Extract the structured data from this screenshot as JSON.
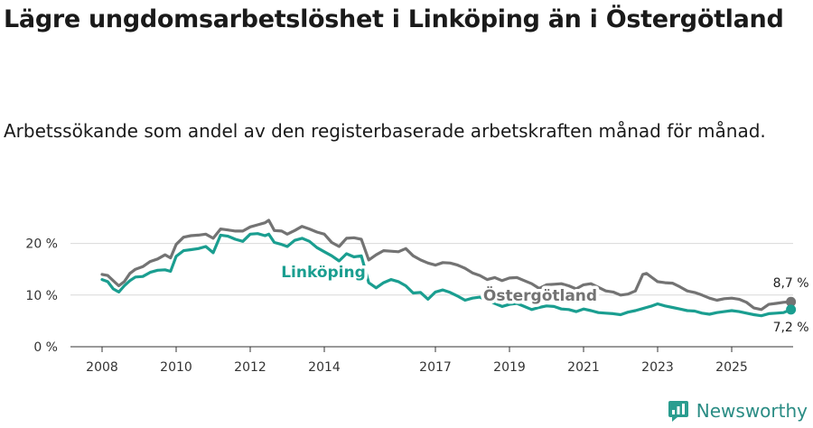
{
  "title": "Lägre ungdomsarbetslöshet i Linköping än i Östergötland",
  "subtitle": "Arbetssökande som andel av den registerbaserade arbetskraften månad för månad.",
  "brand": {
    "name": "Newsworthy",
    "color": "#2a9d8f"
  },
  "chart_data": {
    "type": "line",
    "title": "Lägre ungdomsarbetslöshet i Linköping än i Östergötland",
    "xlabel": "",
    "ylabel": "",
    "ylim": [
      0,
      25
    ],
    "xlim": [
      2007.5,
      2026.6
    ],
    "y_ticks": [
      0,
      10,
      20
    ],
    "y_tick_labels": [
      "0 %",
      "10 %",
      "20 %"
    ],
    "x_ticks": [
      2008,
      2010,
      2012,
      2014,
      2017,
      2019,
      2021,
      2023,
      2025
    ],
    "x_tick_labels": [
      "2008",
      "2010",
      "2012",
      "2014",
      "2017",
      "2019",
      "2021",
      "2023",
      "2025"
    ],
    "series": [
      {
        "name": "Östergötland",
        "color": "#737373",
        "end_label": "8,7 %",
        "points": [
          [
            2008.0,
            14.0
          ],
          [
            2008.15,
            13.8
          ],
          [
            2008.3,
            12.8
          ],
          [
            2008.45,
            11.8
          ],
          [
            2008.6,
            12.6
          ],
          [
            2008.75,
            14.2
          ],
          [
            2008.9,
            15.0
          ],
          [
            2009.1,
            15.5
          ],
          [
            2009.3,
            16.5
          ],
          [
            2009.5,
            17.0
          ],
          [
            2009.7,
            17.8
          ],
          [
            2009.85,
            17.2
          ],
          [
            2010.0,
            19.8
          ],
          [
            2010.2,
            21.2
          ],
          [
            2010.4,
            21.5
          ],
          [
            2010.6,
            21.6
          ],
          [
            2010.8,
            21.8
          ],
          [
            2011.0,
            21.0
          ],
          [
            2011.2,
            22.8
          ],
          [
            2011.4,
            22.6
          ],
          [
            2011.6,
            22.4
          ],
          [
            2011.8,
            22.4
          ],
          [
            2012.0,
            23.2
          ],
          [
            2012.2,
            23.6
          ],
          [
            2012.4,
            24.0
          ],
          [
            2012.5,
            24.5
          ],
          [
            2012.65,
            22.5
          ],
          [
            2012.85,
            22.4
          ],
          [
            2013.0,
            21.8
          ],
          [
            2013.2,
            22.5
          ],
          [
            2013.4,
            23.3
          ],
          [
            2013.6,
            22.8
          ],
          [
            2013.8,
            22.2
          ],
          [
            2014.0,
            21.8
          ],
          [
            2014.2,
            20.2
          ],
          [
            2014.4,
            19.4
          ],
          [
            2014.6,
            21.0
          ],
          [
            2014.8,
            21.1
          ],
          [
            2015.0,
            20.8
          ],
          [
            2015.2,
            16.8
          ],
          [
            2015.4,
            17.8
          ],
          [
            2015.6,
            18.6
          ],
          [
            2015.8,
            18.5
          ],
          [
            2016.0,
            18.4
          ],
          [
            2016.2,
            19.0
          ],
          [
            2016.4,
            17.6
          ],
          [
            2016.6,
            16.8
          ],
          [
            2016.8,
            16.2
          ],
          [
            2017.0,
            15.8
          ],
          [
            2017.2,
            16.3
          ],
          [
            2017.4,
            16.2
          ],
          [
            2017.6,
            15.8
          ],
          [
            2017.8,
            15.2
          ],
          [
            2018.0,
            14.3
          ],
          [
            2018.2,
            13.8
          ],
          [
            2018.4,
            13.0
          ],
          [
            2018.6,
            13.4
          ],
          [
            2018.8,
            12.8
          ],
          [
            2019.0,
            13.3
          ],
          [
            2019.2,
            13.4
          ],
          [
            2019.4,
            12.8
          ],
          [
            2019.6,
            12.2
          ],
          [
            2019.8,
            11.3
          ],
          [
            2020.0,
            12.0
          ],
          [
            2020.2,
            12.1
          ],
          [
            2020.4,
            12.2
          ],
          [
            2020.6,
            11.8
          ],
          [
            2020.8,
            11.2
          ],
          [
            2021.0,
            12.0
          ],
          [
            2021.2,
            12.2
          ],
          [
            2021.4,
            11.5
          ],
          [
            2021.6,
            10.8
          ],
          [
            2021.8,
            10.6
          ],
          [
            2022.0,
            10.0
          ],
          [
            2022.2,
            10.2
          ],
          [
            2022.4,
            10.8
          ],
          [
            2022.6,
            14.0
          ],
          [
            2022.7,
            14.2
          ],
          [
            2022.85,
            13.4
          ],
          [
            2023.0,
            12.6
          ],
          [
            2023.2,
            12.4
          ],
          [
            2023.4,
            12.3
          ],
          [
            2023.6,
            11.6
          ],
          [
            2023.8,
            10.8
          ],
          [
            2024.0,
            10.5
          ],
          [
            2024.2,
            10.0
          ],
          [
            2024.4,
            9.4
          ],
          [
            2024.6,
            9.0
          ],
          [
            2024.8,
            9.3
          ],
          [
            2025.0,
            9.4
          ],
          [
            2025.2,
            9.2
          ],
          [
            2025.4,
            8.6
          ],
          [
            2025.6,
            7.5
          ],
          [
            2025.8,
            7.2
          ],
          [
            2026.0,
            8.2
          ],
          [
            2026.2,
            8.4
          ],
          [
            2026.4,
            8.6
          ],
          [
            2026.6,
            8.7
          ]
        ]
      },
      {
        "name": "Linköping",
        "color": "#1a9e90",
        "end_label": "7,2 %",
        "points": [
          [
            2008.0,
            13.0
          ],
          [
            2008.15,
            12.6
          ],
          [
            2008.3,
            11.2
          ],
          [
            2008.45,
            10.6
          ],
          [
            2008.6,
            11.8
          ],
          [
            2008.75,
            12.8
          ],
          [
            2008.9,
            13.5
          ],
          [
            2009.1,
            13.6
          ],
          [
            2009.3,
            14.4
          ],
          [
            2009.5,
            14.8
          ],
          [
            2009.7,
            14.9
          ],
          [
            2009.85,
            14.6
          ],
          [
            2010.0,
            17.5
          ],
          [
            2010.2,
            18.6
          ],
          [
            2010.4,
            18.8
          ],
          [
            2010.6,
            19.0
          ],
          [
            2010.8,
            19.4
          ],
          [
            2011.0,
            18.2
          ],
          [
            2011.2,
            21.6
          ],
          [
            2011.4,
            21.4
          ],
          [
            2011.6,
            20.8
          ],
          [
            2011.8,
            20.4
          ],
          [
            2012.0,
            21.8
          ],
          [
            2012.2,
            21.9
          ],
          [
            2012.4,
            21.5
          ],
          [
            2012.5,
            21.8
          ],
          [
            2012.65,
            20.2
          ],
          [
            2012.85,
            19.8
          ],
          [
            2013.0,
            19.4
          ],
          [
            2013.2,
            20.6
          ],
          [
            2013.4,
            21.0
          ],
          [
            2013.6,
            20.4
          ],
          [
            2013.8,
            19.2
          ],
          [
            2014.0,
            18.4
          ],
          [
            2014.2,
            17.6
          ],
          [
            2014.4,
            16.6
          ],
          [
            2014.6,
            18.0
          ],
          [
            2014.8,
            17.4
          ],
          [
            2015.0,
            17.6
          ],
          [
            2015.2,
            12.4
          ],
          [
            2015.4,
            11.4
          ],
          [
            2015.6,
            12.4
          ],
          [
            2015.8,
            13.0
          ],
          [
            2016.0,
            12.6
          ],
          [
            2016.2,
            11.8
          ],
          [
            2016.4,
            10.4
          ],
          [
            2016.6,
            10.5
          ],
          [
            2016.8,
            9.2
          ],
          [
            2017.0,
            10.6
          ],
          [
            2017.2,
            11.0
          ],
          [
            2017.4,
            10.5
          ],
          [
            2017.6,
            9.8
          ],
          [
            2017.8,
            9.0
          ],
          [
            2018.0,
            9.4
          ],
          [
            2018.2,
            9.6
          ],
          [
            2018.4,
            9.0
          ],
          [
            2018.6,
            8.4
          ],
          [
            2018.8,
            7.8
          ],
          [
            2019.0,
            8.2
          ],
          [
            2019.2,
            8.4
          ],
          [
            2019.4,
            7.8
          ],
          [
            2019.6,
            7.2
          ],
          [
            2019.8,
            7.6
          ],
          [
            2020.0,
            7.9
          ],
          [
            2020.2,
            7.8
          ],
          [
            2020.4,
            7.3
          ],
          [
            2020.6,
            7.2
          ],
          [
            2020.8,
            6.8
          ],
          [
            2021.0,
            7.3
          ],
          [
            2021.2,
            7.0
          ],
          [
            2021.4,
            6.6
          ],
          [
            2021.6,
            6.5
          ],
          [
            2021.8,
            6.4
          ],
          [
            2022.0,
            6.2
          ],
          [
            2022.2,
            6.7
          ],
          [
            2022.4,
            7.0
          ],
          [
            2022.6,
            7.4
          ],
          [
            2022.7,
            7.6
          ],
          [
            2022.85,
            7.9
          ],
          [
            2023.0,
            8.3
          ],
          [
            2023.2,
            7.9
          ],
          [
            2023.4,
            7.6
          ],
          [
            2023.6,
            7.3
          ],
          [
            2023.8,
            7.0
          ],
          [
            2024.0,
            6.9
          ],
          [
            2024.2,
            6.5
          ],
          [
            2024.4,
            6.3
          ],
          [
            2024.6,
            6.6
          ],
          [
            2024.8,
            6.8
          ],
          [
            2025.0,
            7.0
          ],
          [
            2025.2,
            6.8
          ],
          [
            2025.4,
            6.5
          ],
          [
            2025.6,
            6.2
          ],
          [
            2025.8,
            6.0
          ],
          [
            2026.0,
            6.4
          ],
          [
            2026.2,
            6.5
          ],
          [
            2026.4,
            6.6
          ],
          [
            2026.6,
            7.2
          ]
        ]
      }
    ]
  }
}
